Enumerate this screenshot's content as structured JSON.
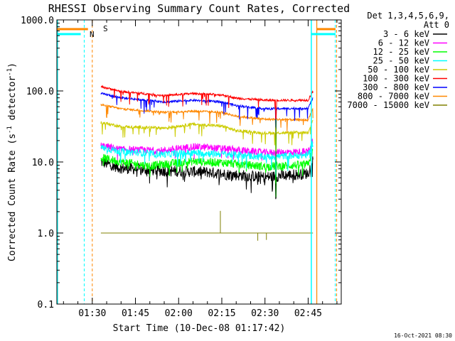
{
  "chart_data": {
    "type": "line",
    "title": "RHESSI Observing Summary Count Rates, Corrected",
    "xlabel": "Start Time (10-Dec-08 01:17:42)",
    "ylabel_main": "Corrected Count Rate (s",
    "ylabel_sup1": "-1",
    "ylabel_mid": " detector",
    "ylabel_sup2": "-1",
    "ylabel_end": ")",
    "yscale": "log",
    "ylim": [
      0.1,
      1000
    ],
    "y_ticks": [
      {
        "v": 0.1,
        "label": "0.1"
      },
      {
        "v": 1,
        "label": "1.0"
      },
      {
        "v": 10,
        "label": "10.0"
      },
      {
        "v": 100,
        "label": "100.0"
      },
      {
        "v": 1000,
        "label": "1000.0"
      }
    ],
    "xlim_minutes": [
      77.7,
      176.5
    ],
    "x_ticks": [
      {
        "m": 90,
        "label": "01:30"
      },
      {
        "m": 105,
        "label": "01:45"
      },
      {
        "m": 120,
        "label": "02:00"
      },
      {
        "m": 135,
        "label": "02:15"
      },
      {
        "m": 150,
        "label": "02:30"
      },
      {
        "m": 165,
        "label": "02:45"
      }
    ],
    "legend_header": [
      "Det 1,3,4,5,6,9,",
      "Att 0"
    ],
    "legend_position": "right",
    "data_start_minute": 93,
    "data_end_minute": 166.8,
    "dip_minute": 153.8,
    "series": [
      {
        "name": "3 - 6 keV",
        "color": "#000000",
        "levels": [
          [
            93,
            10
          ],
          [
            100,
            8.2
          ],
          [
            115,
            7.5
          ],
          [
            130,
            7.2
          ],
          [
            135,
            6.8
          ],
          [
            150,
            6.1
          ],
          [
            165,
            6.9
          ],
          [
            166.8,
            11
          ]
        ],
        "noise": 0.08
      },
      {
        "name": "6 - 12 keV",
        "color": "#ff00ff",
        "levels": [
          [
            93,
            17
          ],
          [
            100,
            15
          ],
          [
            115,
            14.5
          ],
          [
            125,
            16.5
          ],
          [
            135,
            15.5
          ],
          [
            150,
            13.5
          ],
          [
            165,
            14
          ],
          [
            166.8,
            21
          ]
        ],
        "noise": 0.05
      },
      {
        "name": "12 - 25 keV",
        "color": "#00ff00",
        "levels": [
          [
            93,
            11.5
          ],
          [
            100,
            10
          ],
          [
            110,
            8.8
          ],
          [
            125,
            10.2
          ],
          [
            135,
            9.8
          ],
          [
            150,
            8.6
          ],
          [
            165,
            9.2
          ],
          [
            166.8,
            15
          ]
        ],
        "noise": 0.06
      },
      {
        "name": "25 - 50 keV",
        "color": "#00ffff",
        "levels": [
          [
            93,
            16
          ],
          [
            100,
            14
          ],
          [
            115,
            12.8
          ],
          [
            125,
            13.5
          ],
          [
            135,
            13
          ],
          [
            150,
            11.8
          ],
          [
            165,
            12.5
          ],
          [
            166.8,
            19
          ]
        ],
        "noise": 0.05
      },
      {
        "name": "50 - 100 keV",
        "color": "#cccc00",
        "levels": [
          [
            93,
            36
          ],
          [
            100,
            31.5
          ],
          [
            115,
            30
          ],
          [
            125,
            34
          ],
          [
            135,
            32
          ],
          [
            140,
            27.5
          ],
          [
            150,
            25.5
          ],
          [
            165,
            26
          ],
          [
            166.8,
            40
          ]
        ],
        "noise": 0.02
      },
      {
        "name": "100 - 300 keV",
        "color": "#ff0000",
        "levels": [
          [
            93,
            115
          ],
          [
            100,
            98
          ],
          [
            115,
            86
          ],
          [
            125,
            92
          ],
          [
            135,
            88
          ],
          [
            140,
            79
          ],
          [
            150,
            74
          ],
          [
            165,
            74
          ],
          [
            166.8,
            100
          ]
        ],
        "noise": 0.015
      },
      {
        "name": "300 - 800 keV",
        "color": "#0000ff",
        "levels": [
          [
            93,
            92
          ],
          [
            100,
            80
          ],
          [
            115,
            70
          ],
          [
            125,
            74
          ],
          [
            135,
            70
          ],
          [
            140,
            62
          ],
          [
            150,
            56
          ],
          [
            165,
            57
          ],
          [
            166.8,
            80
          ]
        ],
        "noise": 0.015
      },
      {
        "name": "800 - 7000 keV",
        "color": "#ff8800",
        "levels": [
          [
            93,
            64
          ],
          [
            100,
            56
          ],
          [
            115,
            50
          ],
          [
            125,
            52
          ],
          [
            135,
            50
          ],
          [
            140,
            44
          ],
          [
            150,
            40
          ],
          [
            165,
            39
          ],
          [
            166.8,
            58
          ]
        ],
        "noise": 0.015
      },
      {
        "name": "7000 - 15000 keV",
        "color": "#808000",
        "levels": [
          [
            93,
            1
          ],
          [
            166.8,
            1
          ]
        ],
        "noise": 0
      }
    ],
    "flags": {
      "S": {
        "label": "S",
        "color": "#ff8800"
      },
      "N": {
        "label": "N",
        "color": "#00ffff"
      }
    },
    "timestamp": "16-Oct-2021 08:30"
  }
}
